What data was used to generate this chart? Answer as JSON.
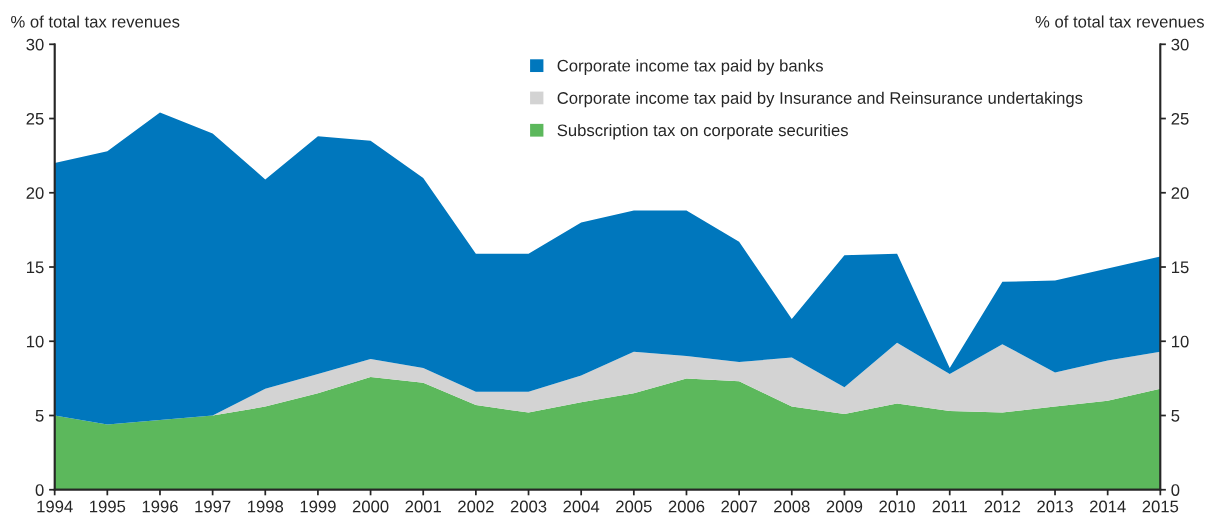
{
  "chart_data": {
    "type": "area",
    "stacked": true,
    "ylabel": "% of total tax revenues",
    "y2label": "% of total tax revenues",
    "categories": [
      "1994",
      "1995",
      "1996",
      "1997",
      "1998",
      "1999",
      "2000",
      "2001",
      "2002",
      "2003",
      "2004",
      "2005",
      "2006",
      "2007",
      "2008",
      "2009",
      "2010",
      "2011",
      "2012",
      "2013",
      "2014",
      "2015"
    ],
    "series": [
      {
        "name": "Subscription tax on corporate securities",
        "color": "#5cb85c",
        "values": [
          5.0,
          4.4,
          4.7,
          5.0,
          5.6,
          6.5,
          7.6,
          7.2,
          5.7,
          5.2,
          5.9,
          6.5,
          7.5,
          7.3,
          5.6,
          5.1,
          5.8,
          5.3,
          5.2,
          5.6,
          6.0,
          6.8
        ]
      },
      {
        "name": "Corporate income tax paid by Insurance and Reinsurance undertakings",
        "color": "#d3d3d3",
        "values": [
          0,
          0,
          0,
          0,
          1.2,
          1.3,
          1.2,
          1.0,
          0.9,
          1.4,
          1.8,
          2.8,
          1.5,
          1.3,
          3.3,
          1.8,
          4.1,
          2.5,
          4.6,
          2.3,
          2.7,
          2.5
        ]
      },
      {
        "name": "Corporate income tax paid by banks",
        "color": "#0077bd",
        "values": [
          17.0,
          18.4,
          20.7,
          19.0,
          14.1,
          16.0,
          14.7,
          12.8,
          9.3,
          9.3,
          10.3,
          9.5,
          9.8,
          8.1,
          2.6,
          8.9,
          6.0,
          0.4,
          4.2,
          6.2,
          6.2,
          6.4
        ]
      }
    ],
    "ylim": [
      0,
      30
    ],
    "yticks": [
      0,
      5,
      10,
      15,
      20,
      25,
      30
    ],
    "y2lim": [
      0,
      30
    ],
    "y2ticks": [
      0,
      5,
      10,
      15,
      20,
      25,
      30
    ],
    "legend": "top",
    "grid": false
  }
}
